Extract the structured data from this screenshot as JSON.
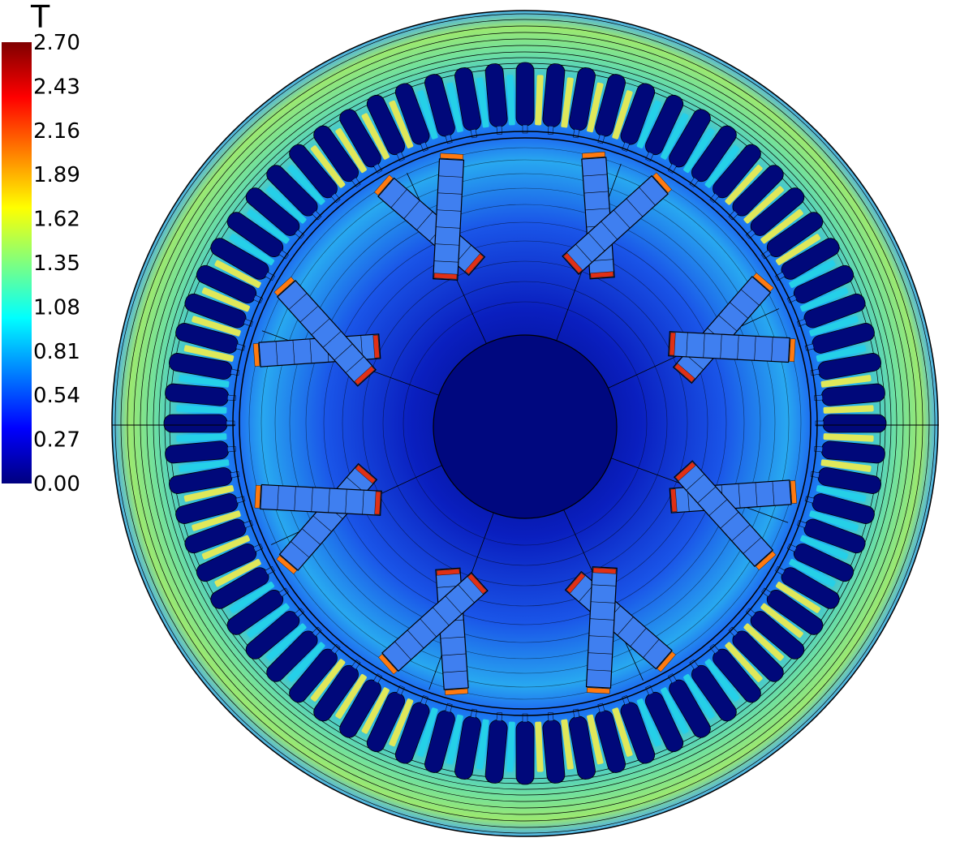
{
  "colorbar": {
    "unit": "T",
    "ticks": [
      "2.70",
      "2.43",
      "2.16",
      "1.89",
      "1.62",
      "1.35",
      "1.08",
      "0.81",
      "0.54",
      "0.27",
      "0.00"
    ],
    "min": 0.0,
    "max": 2.7,
    "colormap": [
      "#00007f",
      "#0000ff",
      "#007fff",
      "#00ffff",
      "#7fff7f",
      "#ffff00",
      "#ff7f00",
      "#ff0000",
      "#7f0000"
    ]
  },
  "machine": {
    "stator_slots": 72,
    "rotor_poles": 8,
    "colors": {
      "background_field": "#1f5fe8",
      "yoke_band": "#8ee07a",
      "tooth_high": "#dfe85a",
      "slot": "#00087a",
      "shaft": "#00087f",
      "magnet": "#3f7ff0",
      "air_gap_high": "#e03015",
      "outline": "#000000"
    }
  }
}
